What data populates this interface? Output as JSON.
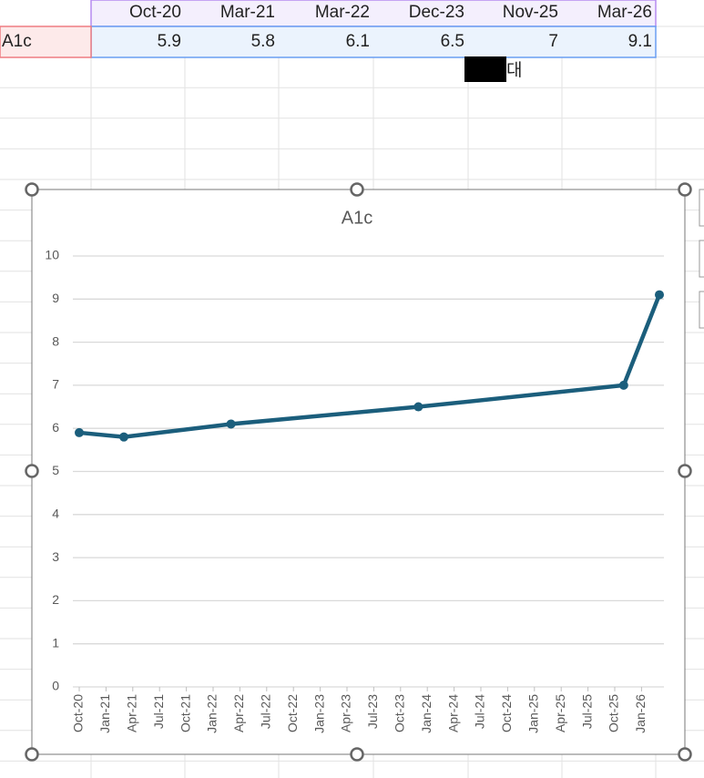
{
  "table": {
    "header": [
      "Oct-20",
      "Mar-21",
      "Mar-22",
      "Dec-23",
      "Nov-25",
      "Mar-26"
    ],
    "rows": [
      [
        "A1c",
        5.9,
        5.8,
        6.1,
        6.5,
        7,
        9.1
      ]
    ]
  },
  "overlay_text": "대",
  "chart_data": {
    "type": "line",
    "title": "A1c",
    "x": [
      "Oct-20",
      "Mar-21",
      "Mar-22",
      "Dec-23",
      "Nov-25",
      "Mar-26"
    ],
    "series": [
      {
        "name": "A1c",
        "color": "#1b5e7c",
        "values": [
          5.9,
          5.8,
          6.1,
          6.5,
          7,
          9.1
        ]
      }
    ],
    "xlim": [
      "Oct-20",
      "Mar-26"
    ],
    "xticks": [
      "Oct-20",
      "Jan-21",
      "Apr-21",
      "Jul-21",
      "Oct-21",
      "Jan-22",
      "Apr-22",
      "Jul-22",
      "Oct-22",
      "Jan-23",
      "Apr-23",
      "Jul-23",
      "Oct-23",
      "Jan-24",
      "Apr-24",
      "Jul-24",
      "Oct-24",
      "Jan-25",
      "Apr-25",
      "Jul-25",
      "Oct-25",
      "Jan-26"
    ],
    "ylim": [
      0,
      10
    ],
    "yticks": [
      0,
      1,
      2,
      3,
      4,
      5,
      6,
      7,
      8,
      9,
      10
    ],
    "grid": true
  }
}
